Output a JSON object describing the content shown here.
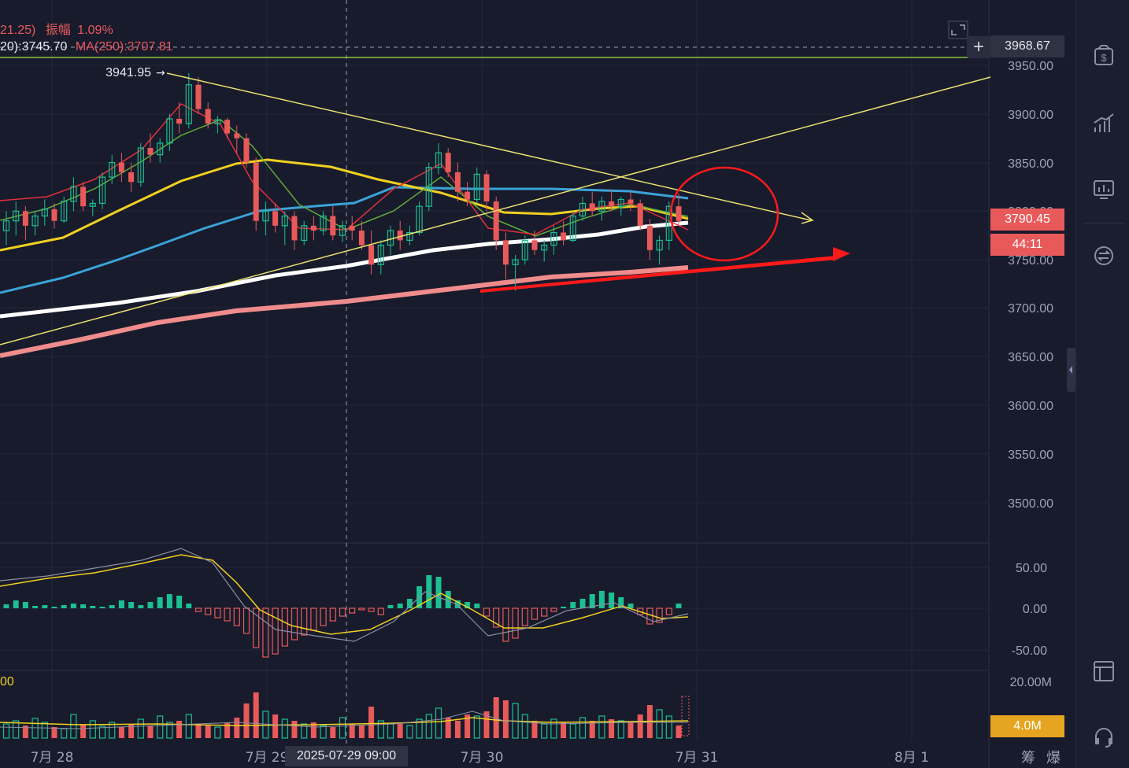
{
  "header": {
    "change": "21.25)",
    "amplitude_label": "振幅",
    "amplitude_value": "1.09%",
    "ma120": "20):3745.70",
    "ma250": "MA(250):3707.81"
  },
  "price_axis": {
    "crosshair_price": "3968.67",
    "last_price": "3790.45",
    "countdown": "44:11",
    "ticks": [
      "3950.00",
      "3900.00",
      "3850.00",
      "3800.00",
      "3750.00",
      "3700.00",
      "3650.00",
      "3600.00",
      "3550.00",
      "3500.00"
    ]
  },
  "macd_axis": {
    "ticks": [
      "50.00",
      "0.00",
      "-50.00"
    ]
  },
  "volume_axis": {
    "top_label": "20.00M",
    "current_volume": "4.0M",
    "left_value": "00"
  },
  "time_axis": {
    "labels": [
      "7月 28",
      "7月 29",
      "7月 30",
      "7月 31",
      "8月 1"
    ],
    "crosshair_date": "2025-07-29 09:00"
  },
  "high_marker": "3941.95",
  "bottom_right": {
    "chip_label": "筹",
    "burst_label": "爆"
  },
  "colors": {
    "up": "#1bbf91",
    "down": "#e85a5a",
    "ma_short_red": "#e0303a",
    "ma_green": "#5fa83a",
    "ma_yellow": "#f0d020",
    "ma_blue": "#3aa3d8",
    "ma_white": "#ffffff",
    "ma_pink": "#f08c8c",
    "trendline": "#e8e070",
    "annotation": "#ff1a1a"
  },
  "chart_data": {
    "type": "candlestick",
    "interval": "1h",
    "price_range": [
      3500,
      3950
    ],
    "high_marker": 3941.95,
    "last_price": 3790.45,
    "crosshair_price": 3968.67,
    "crosshair_time": "2025-07-29 09:00",
    "ma250_value": 3707.81,
    "ma120_value": 3745.7,
    "amplitude": "1.09%",
    "candles_ohlc": [
      [
        3780,
        3800,
        3765,
        3790
      ],
      [
        3790,
        3810,
        3775,
        3800
      ],
      [
        3800,
        3805,
        3770,
        3785
      ],
      [
        3785,
        3800,
        3775,
        3795
      ],
      [
        3795,
        3812,
        3785,
        3802
      ],
      [
        3802,
        3808,
        3782,
        3790
      ],
      [
        3790,
        3815,
        3788,
        3810
      ],
      [
        3810,
        3835,
        3800,
        3825
      ],
      [
        3825,
        3830,
        3800,
        3805
      ],
      [
        3805,
        3812,
        3795,
        3808
      ],
      [
        3808,
        3840,
        3802,
        3835
      ],
      [
        3835,
        3858,
        3828,
        3850
      ],
      [
        3850,
        3860,
        3830,
        3840
      ],
      [
        3840,
        3850,
        3820,
        3830
      ],
      [
        3830,
        3870,
        3825,
        3865
      ],
      [
        3865,
        3880,
        3850,
        3858
      ],
      [
        3858,
        3875,
        3850,
        3870
      ],
      [
        3870,
        3900,
        3862,
        3895
      ],
      [
        3895,
        3912,
        3880,
        3890
      ],
      [
        3890,
        3942,
        3885,
        3930
      ],
      [
        3930,
        3938,
        3900,
        3905
      ],
      [
        3905,
        3912,
        3885,
        3890
      ],
      [
        3890,
        3898,
        3880,
        3894
      ],
      [
        3894,
        3896,
        3875,
        3880
      ],
      [
        3880,
        3888,
        3860,
        3875
      ],
      [
        3875,
        3880,
        3845,
        3850
      ],
      [
        3850,
        3855,
        3780,
        3790
      ],
      [
        3790,
        3810,
        3775,
        3800
      ],
      [
        3800,
        3808,
        3778,
        3785
      ],
      [
        3785,
        3800,
        3765,
        3795
      ],
      [
        3795,
        3800,
        3760,
        3770
      ],
      [
        3770,
        3790,
        3765,
        3785
      ],
      [
        3785,
        3795,
        3770,
        3780
      ],
      [
        3780,
        3800,
        3775,
        3795
      ],
      [
        3795,
        3805,
        3770,
        3775
      ],
      [
        3775,
        3790,
        3768,
        3785
      ],
      [
        3785,
        3795,
        3770,
        3780
      ],
      [
        3780,
        3790,
        3760,
        3765
      ],
      [
        3765,
        3780,
        3735,
        3745
      ],
      [
        3745,
        3770,
        3735,
        3765
      ],
      [
        3765,
        3785,
        3755,
        3780
      ],
      [
        3780,
        3790,
        3760,
        3770
      ],
      [
        3770,
        3785,
        3765,
        3778
      ],
      [
        3778,
        3810,
        3775,
        3805
      ],
      [
        3805,
        3850,
        3800,
        3845
      ],
      [
        3845,
        3870,
        3838,
        3860
      ],
      [
        3860,
        3865,
        3835,
        3840
      ],
      [
        3840,
        3850,
        3810,
        3820
      ],
      [
        3820,
        3830,
        3805,
        3812
      ],
      [
        3812,
        3845,
        3808,
        3838
      ],
      [
        3838,
        3842,
        3800,
        3810
      ],
      [
        3810,
        3815,
        3760,
        3770
      ],
      [
        3770,
        3778,
        3730,
        3745
      ],
      [
        3745,
        3755,
        3718,
        3750
      ],
      [
        3750,
        3775,
        3745,
        3770
      ],
      [
        3770,
        3780,
        3755,
        3760
      ],
      [
        3760,
        3770,
        3748,
        3765
      ],
      [
        3765,
        3785,
        3755,
        3778
      ],
      [
        3778,
        3790,
        3765,
        3770
      ],
      [
        3770,
        3800,
        3768,
        3795
      ],
      [
        3795,
        3815,
        3790,
        3808
      ],
      [
        3808,
        3820,
        3795,
        3800
      ],
      [
        3800,
        3815,
        3790,
        3810
      ],
      [
        3810,
        3822,
        3800,
        3805
      ],
      [
        3805,
        3815,
        3795,
        3812
      ],
      [
        3812,
        3820,
        3800,
        3808
      ],
      [
        3808,
        3812,
        3780,
        3785
      ],
      [
        3785,
        3792,
        3750,
        3760
      ],
      [
        3760,
        3775,
        3745,
        3770
      ],
      [
        3770,
        3810,
        3760,
        3805
      ],
      [
        3805,
        3818,
        3785,
        3790
      ]
    ],
    "macd_range": [
      -50,
      50
    ],
    "volume_max": "20.00M",
    "current_volume": "4.0M"
  }
}
